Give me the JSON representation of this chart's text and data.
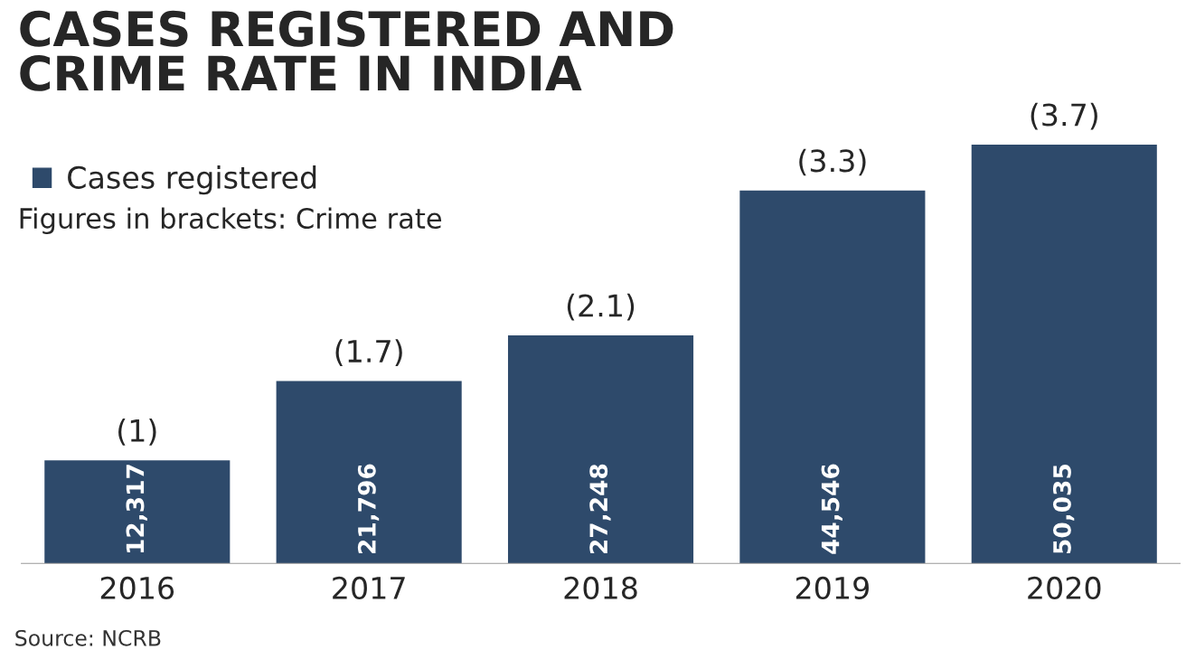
{
  "chart_data": {
    "type": "bar",
    "title": "CASES REGISTERED AND\nCRIME RATE IN INDIA",
    "subtitle": "Figures in brackets: Crime rate",
    "categories": [
      "2016",
      "2017",
      "2018",
      "2019",
      "2020"
    ],
    "series": [
      {
        "name": "Cases registered",
        "color": "#2e4a6b",
        "values": [
          12317,
          21796,
          27248,
          44546,
          50035
        ],
        "value_labels": [
          "12,317",
          "21,796",
          "27,248",
          "44,546",
          "50,035"
        ]
      }
    ],
    "tick_labels": "x",
    "legend": "top left",
    "grid": false,
    "annotations": [
      {
        "text": "(1)",
        "x": "2016",
        "y": 12317
      },
      {
        "text": "(1.7)",
        "x": "2017",
        "y": 21796
      },
      {
        "text": "(2.1)",
        "x": "2018",
        "y": 27248
      },
      {
        "text": "(3.3)",
        "x": "2019",
        "y": 44546
      },
      {
        "text": "(3.7)",
        "x": "2020",
        "y": 50035
      },
      "Source: NCRB"
    ]
  }
}
